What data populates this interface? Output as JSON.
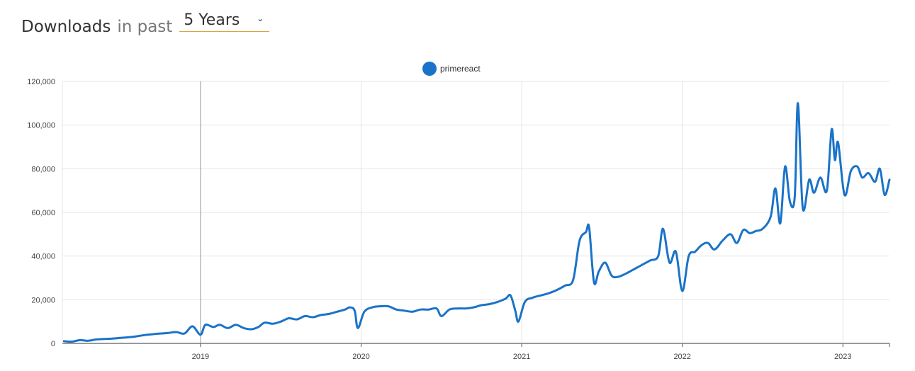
{
  "header": {
    "title": "Downloads",
    "in_past": "in past",
    "period_value": "5 Years",
    "chevron_icon": "chevron-down-icon"
  },
  "chart_data": {
    "type": "line",
    "series": [
      {
        "name": "primereact",
        "color": "#1a73c8",
        "points": [
          [
            2018.15,
            1000
          ],
          [
            2018.2,
            800
          ],
          [
            2018.25,
            1500
          ],
          [
            2018.3,
            1200
          ],
          [
            2018.35,
            1800
          ],
          [
            2018.4,
            2000
          ],
          [
            2018.45,
            2200
          ],
          [
            2018.5,
            2500
          ],
          [
            2018.55,
            2800
          ],
          [
            2018.6,
            3200
          ],
          [
            2018.65,
            3800
          ],
          [
            2018.7,
            4200
          ],
          [
            2018.75,
            4500
          ],
          [
            2018.8,
            4800
          ],
          [
            2018.85,
            5200
          ],
          [
            2018.9,
            4500
          ],
          [
            2018.95,
            7800
          ],
          [
            2019.0,
            4000
          ],
          [
            2019.03,
            8500
          ],
          [
            2019.08,
            7500
          ],
          [
            2019.12,
            8500
          ],
          [
            2019.17,
            7000
          ],
          [
            2019.22,
            8500
          ],
          [
            2019.27,
            7000
          ],
          [
            2019.32,
            6500
          ],
          [
            2019.36,
            7500
          ],
          [
            2019.4,
            9500
          ],
          [
            2019.45,
            9000
          ],
          [
            2019.5,
            10000
          ],
          [
            2019.55,
            11500
          ],
          [
            2019.6,
            11000
          ],
          [
            2019.65,
            12500
          ],
          [
            2019.7,
            12000
          ],
          [
            2019.75,
            13000
          ],
          [
            2019.8,
            13500
          ],
          [
            2019.85,
            14500
          ],
          [
            2019.9,
            15500
          ],
          [
            2019.93,
            16500
          ],
          [
            2019.96,
            15000
          ],
          [
            2019.98,
            7000
          ],
          [
            2020.02,
            14500
          ],
          [
            2020.07,
            16500
          ],
          [
            2020.12,
            17000
          ],
          [
            2020.17,
            17000
          ],
          [
            2020.22,
            15500
          ],
          [
            2020.27,
            15000
          ],
          [
            2020.32,
            14500
          ],
          [
            2020.37,
            15500
          ],
          [
            2020.42,
            15500
          ],
          [
            2020.47,
            16000
          ],
          [
            2020.5,
            12500
          ],
          [
            2020.55,
            15500
          ],
          [
            2020.6,
            16000
          ],
          [
            2020.65,
            16000
          ],
          [
            2020.7,
            16500
          ],
          [
            2020.75,
            17500
          ],
          [
            2020.8,
            18000
          ],
          [
            2020.85,
            19000
          ],
          [
            2020.9,
            20500
          ],
          [
            2020.93,
            22000
          ],
          [
            2020.96,
            15000
          ],
          [
            2020.98,
            10000
          ],
          [
            2021.02,
            19000
          ],
          [
            2021.07,
            21000
          ],
          [
            2021.12,
            22000
          ],
          [
            2021.17,
            23000
          ],
          [
            2021.22,
            24500
          ],
          [
            2021.27,
            26500
          ],
          [
            2021.32,
            29000
          ],
          [
            2021.36,
            47000
          ],
          [
            2021.4,
            51000
          ],
          [
            2021.42,
            53000
          ],
          [
            2021.45,
            28000
          ],
          [
            2021.48,
            33000
          ],
          [
            2021.52,
            37000
          ],
          [
            2021.56,
            31000
          ],
          [
            2021.6,
            30500
          ],
          [
            2021.65,
            32000
          ],
          [
            2021.7,
            34000
          ],
          [
            2021.75,
            36000
          ],
          [
            2021.8,
            38000
          ],
          [
            2021.85,
            40000
          ],
          [
            2021.88,
            52500
          ],
          [
            2021.92,
            37000
          ],
          [
            2021.96,
            42000
          ],
          [
            2022.0,
            24000
          ],
          [
            2022.04,
            40000
          ],
          [
            2022.08,
            42000
          ],
          [
            2022.12,
            45000
          ],
          [
            2022.16,
            46000
          ],
          [
            2022.2,
            43000
          ],
          [
            2022.25,
            47000
          ],
          [
            2022.3,
            50000
          ],
          [
            2022.34,
            46000
          ],
          [
            2022.38,
            52000
          ],
          [
            2022.42,
            50500
          ],
          [
            2022.46,
            51500
          ],
          [
            2022.5,
            52500
          ],
          [
            2022.55,
            58000
          ],
          [
            2022.58,
            71000
          ],
          [
            2022.61,
            55000
          ],
          [
            2022.64,
            81000
          ],
          [
            2022.67,
            65000
          ],
          [
            2022.7,
            67000
          ],
          [
            2022.72,
            110000
          ],
          [
            2022.75,
            62000
          ],
          [
            2022.79,
            75000
          ],
          [
            2022.82,
            69000
          ],
          [
            2022.86,
            76000
          ],
          [
            2022.9,
            70000
          ],
          [
            2022.93,
            98000
          ],
          [
            2022.95,
            84000
          ],
          [
            2022.97,
            92000
          ],
          [
            2023.01,
            68000
          ],
          [
            2023.05,
            79000
          ],
          [
            2023.09,
            81000
          ],
          [
            2023.12,
            76000
          ],
          [
            2023.16,
            78000
          ],
          [
            2023.2,
            74000
          ],
          [
            2023.23,
            80000
          ],
          [
            2023.26,
            68000
          ],
          [
            2023.29,
            75000
          ]
        ]
      }
    ],
    "xlim": [
      2018.14,
      2023.29
    ],
    "ylim": [
      0,
      120000
    ],
    "x_ticks": [
      {
        "value": 2019,
        "label": "2019"
      },
      {
        "value": 2020,
        "label": "2020"
      },
      {
        "value": 2021,
        "label": "2021"
      },
      {
        "value": 2022,
        "label": "2022"
      },
      {
        "value": 2023,
        "label": "2023"
      }
    ],
    "y_ticks": [
      {
        "value": 0,
        "label": "0"
      },
      {
        "value": 20000,
        "label": "20,000"
      },
      {
        "value": 40000,
        "label": "40,000"
      },
      {
        "value": 60000,
        "label": "60,000"
      },
      {
        "value": 80000,
        "label": "80,000"
      },
      {
        "value": 100000,
        "label": "100,000"
      },
      {
        "value": 120000,
        "label": "120,000"
      }
    ],
    "grid": true,
    "legend": "top-center",
    "hover_line_x": 2019
  }
}
